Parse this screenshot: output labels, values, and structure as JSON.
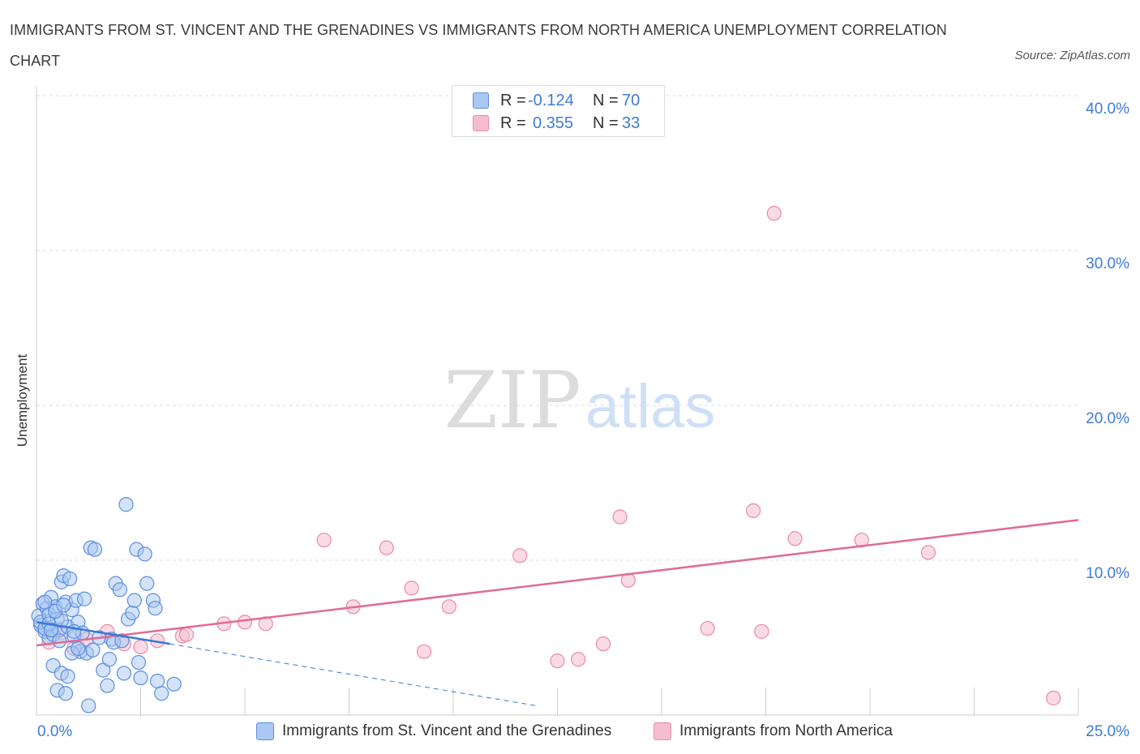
{
  "header": {
    "title": "IMMIGRANTS FROM ST. VINCENT AND THE GRENADINES VS IMMIGRANTS FROM NORTH AMERICA UNEMPLOYMENT CORRELATION CHART",
    "source": "Source: ZipAtlas.com"
  },
  "watermark": {
    "zip": "ZIP",
    "atlas": "atlas"
  },
  "legend": {
    "rows": [
      {
        "r_label": "R =",
        "r_value": "-0.124",
        "n_label": "N =",
        "n_value": "70"
      },
      {
        "r_label": "R =",
        "r_value": "0.355",
        "n_label": "N =",
        "n_value": "33"
      }
    ]
  },
  "colors": {
    "blue_fill": "#aac8f4",
    "blue_stroke": "#5a8ee0",
    "blue_line": "#3a78d6",
    "pink_fill": "#f6bdd0",
    "pink_stroke": "#e98aab",
    "pink_line": "#e06b96",
    "axis_text": "#3f7bd6",
    "grid": "#dddddd"
  },
  "chart_data": {
    "type": "scatter",
    "title": "IMMIGRANTS FROM ST. VINCENT AND THE GRENADINES VS IMMIGRANTS FROM NORTH AMERICA UNEMPLOYMENT CORRELATION CHART",
    "xlabel": "",
    "ylabel": "Unemployment",
    "xlim": [
      0,
      25
    ],
    "ylim": [
      0,
      40
    ],
    "x_tick_labels": [
      "0.0%",
      "25.0%"
    ],
    "y_ticks": [
      10,
      20,
      30,
      40
    ],
    "y_tick_labels": [
      "10.0%",
      "20.0%",
      "30.0%",
      "40.0%"
    ],
    "legend_position": "top-center",
    "series": [
      {
        "name": "Immigrants from St. Vincent and the Grenadines",
        "color": "#aac8f4",
        "r": -0.124,
        "n": 70,
        "trend": {
          "x": [
            0,
            3.2
          ],
          "y": [
            6.0,
            4.6
          ]
        },
        "trend_dashed": {
          "x": [
            3.2,
            12.0
          ],
          "y": [
            4.6,
            0.6
          ]
        },
        "points": [
          [
            0.05,
            6.4
          ],
          [
            0.1,
            5.8
          ],
          [
            0.15,
            7.2
          ],
          [
            0.2,
            5.4
          ],
          [
            0.25,
            6.9
          ],
          [
            0.3,
            5.0
          ],
          [
            0.35,
            7.6
          ],
          [
            0.1,
            6.0
          ],
          [
            0.2,
            5.6
          ],
          [
            0.3,
            6.5
          ],
          [
            0.4,
            5.2
          ],
          [
            0.45,
            7.0
          ],
          [
            0.5,
            6.2
          ],
          [
            0.55,
            5.5
          ],
          [
            0.6,
            8.6
          ],
          [
            0.65,
            9.0
          ],
          [
            0.7,
            7.3
          ],
          [
            0.75,
            5.7
          ],
          [
            0.8,
            8.8
          ],
          [
            0.85,
            6.8
          ],
          [
            0.9,
            5.1
          ],
          [
            0.95,
            7.4
          ],
          [
            1.0,
            6.0
          ],
          [
            1.05,
            4.1
          ],
          [
            1.1,
            5.3
          ],
          [
            1.15,
            7.5
          ],
          [
            0.4,
            3.2
          ],
          [
            0.5,
            1.6
          ],
          [
            0.6,
            2.7
          ],
          [
            0.7,
            1.4
          ],
          [
            0.75,
            2.5
          ],
          [
            0.85,
            4.0
          ],
          [
            1.2,
            4.0
          ],
          [
            1.3,
            10.8
          ],
          [
            1.35,
            4.2
          ],
          [
            1.4,
            10.7
          ],
          [
            1.5,
            5.0
          ],
          [
            1.6,
            2.9
          ],
          [
            1.7,
            1.9
          ],
          [
            1.75,
            3.6
          ],
          [
            1.8,
            4.9
          ],
          [
            1.85,
            4.7
          ],
          [
            1.9,
            8.5
          ],
          [
            2.0,
            8.1
          ],
          [
            2.05,
            4.8
          ],
          [
            2.1,
            2.7
          ],
          [
            2.15,
            13.6
          ],
          [
            2.2,
            6.2
          ],
          [
            2.3,
            6.6
          ],
          [
            2.35,
            7.4
          ],
          [
            2.4,
            10.7
          ],
          [
            2.45,
            3.4
          ],
          [
            2.5,
            2.4
          ],
          [
            2.6,
            10.4
          ],
          [
            2.65,
            8.5
          ],
          [
            2.8,
            7.4
          ],
          [
            2.85,
            6.9
          ],
          [
            2.9,
            2.2
          ],
          [
            3.0,
            1.4
          ],
          [
            3.3,
            2.0
          ],
          [
            0.2,
            7.3
          ],
          [
            0.3,
            5.9
          ],
          [
            0.55,
            4.8
          ],
          [
            0.6,
            6.1
          ],
          [
            0.9,
            5.4
          ],
          [
            1.0,
            4.3
          ],
          [
            0.45,
            6.7
          ],
          [
            0.35,
            5.5
          ],
          [
            0.65,
            7.1
          ],
          [
            1.25,
            0.6
          ]
        ]
      },
      {
        "name": "Immigrants from North America",
        "color": "#f6bdd0",
        "r": 0.355,
        "n": 33,
        "trend": {
          "x": [
            0,
            25
          ],
          "y": [
            4.5,
            12.6
          ]
        },
        "points": [
          [
            0.3,
            4.7
          ],
          [
            0.6,
            5.3
          ],
          [
            0.9,
            4.3
          ],
          [
            1.2,
            4.9
          ],
          [
            1.7,
            5.4
          ],
          [
            2.1,
            4.6
          ],
          [
            2.5,
            4.4
          ],
          [
            2.9,
            4.8
          ],
          [
            3.5,
            5.1
          ],
          [
            3.6,
            5.2
          ],
          [
            4.5,
            5.9
          ],
          [
            5.0,
            6.0
          ],
          [
            5.5,
            5.9
          ],
          [
            6.9,
            11.3
          ],
          [
            7.6,
            7.0
          ],
          [
            8.4,
            10.8
          ],
          [
            9.0,
            8.2
          ],
          [
            9.3,
            4.1
          ],
          [
            11.6,
            10.3
          ],
          [
            12.5,
            3.5
          ],
          [
            13.0,
            3.6
          ],
          [
            13.6,
            4.6
          ],
          [
            14.0,
            12.8
          ],
          [
            14.2,
            8.7
          ],
          [
            16.1,
            5.6
          ],
          [
            17.2,
            13.2
          ],
          [
            17.4,
            5.4
          ],
          [
            18.2,
            11.4
          ],
          [
            19.8,
            11.3
          ],
          [
            21.4,
            10.5
          ],
          [
            17.7,
            32.4
          ],
          [
            24.4,
            1.1
          ],
          [
            9.9,
            7.0
          ]
        ]
      }
    ]
  }
}
